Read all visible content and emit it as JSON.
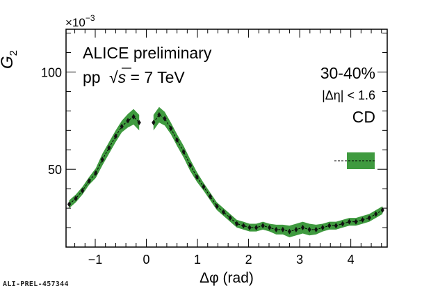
{
  "chart_data": {
    "type": "line",
    "ylabel_main": "G",
    "ylabel_sub": "2",
    "y_multiplier_base": "×10",
    "y_multiplier_exp": "−3",
    "xlabel": "Δφ (rad)",
    "xlim": [
      -1.571,
      4.712
    ],
    "ylim": [
      10,
      122
    ],
    "x_ticks": [
      -1,
      0,
      1,
      2,
      3,
      4
    ],
    "x_tick_labels": [
      "−1",
      "0",
      "1",
      "2",
      "3",
      "4"
    ],
    "y_ticks": [
      50,
      100
    ],
    "y_tick_labels": [
      "50",
      "100"
    ],
    "grid": false,
    "annotations": {
      "experiment": "ALICE preliminary",
      "system_prefix": "pp",
      "system_sqrt": "√",
      "system_s": "s",
      "system_rest": " = 7 TeV",
      "centrality": "30-40%",
      "eta_cut": "|Δη| < 1.6",
      "label": "CD"
    },
    "legend_box_placement": "right",
    "colors": {
      "band": "#3f9a3f",
      "band_light": "#4aa84a",
      "points": "#111111",
      "axis": "#000000"
    },
    "series": [
      {
        "x": [
          -1.51,
          -1.38,
          -1.25,
          -1.12,
          -0.99,
          -0.86,
          -0.73,
          -0.6,
          -0.48,
          -0.36,
          -0.25,
          -0.14,
          0.14,
          0.25,
          0.36,
          0.48,
          0.6,
          0.73,
          0.86,
          0.99,
          1.12,
          1.25,
          1.38,
          1.51,
          1.64,
          1.77,
          1.9,
          2.02,
          2.15,
          2.28,
          2.41,
          2.54,
          2.67,
          2.8,
          2.93,
          3.06,
          3.19,
          3.32,
          3.45,
          3.58,
          3.71,
          3.84,
          3.97,
          4.1,
          4.23,
          4.36,
          4.49,
          4.62
        ],
        "y": [
          32,
          35,
          39,
          44,
          48,
          55,
          61,
          67,
          72,
          75,
          77,
          74,
          74,
          78,
          76,
          71,
          65,
          59,
          52,
          46,
          41,
          36,
          31,
          28,
          25,
          22,
          21,
          20,
          20,
          21,
          20,
          19,
          19,
          18,
          19,
          20,
          19,
          19,
          20,
          21,
          21,
          22,
          23,
          23,
          24,
          25,
          27,
          29
        ],
        "band_err": [
          2,
          2,
          2,
          2,
          2.5,
          3,
          3,
          3,
          3,
          3.5,
          4,
          4,
          4,
          4,
          3.5,
          3,
          3,
          3,
          3,
          2.5,
          2,
          2,
          2,
          2,
          2,
          2,
          2,
          2,
          2,
          2,
          2,
          2.5,
          2.5,
          3,
          3,
          3,
          3,
          2.5,
          2,
          2,
          2,
          2,
          2,
          2,
          2,
          2,
          2,
          2
        ]
      }
    ]
  },
  "footer": {
    "id": "ALI-PREL-457344"
  }
}
